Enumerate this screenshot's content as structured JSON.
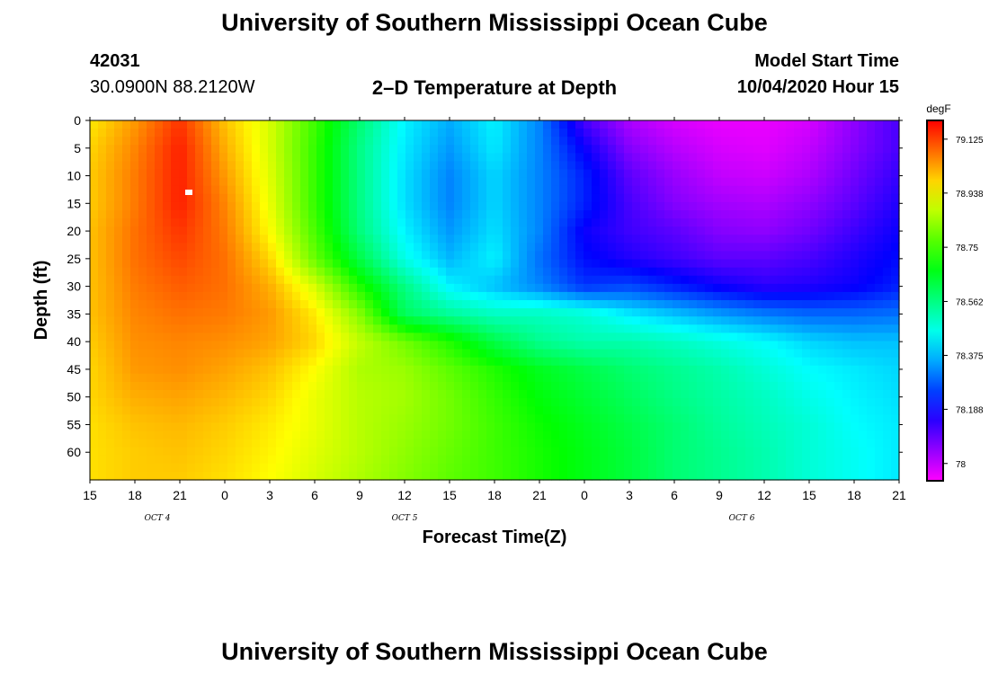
{
  "header": {
    "title": "University of Southern Mississippi Ocean Cube",
    "station_id": "42031",
    "location": "30.0900N 88.2120W",
    "plot_title": "2–D Temperature at Depth",
    "model_start_label": "Model Start Time",
    "model_start_value": "10/04/2020 Hour 15"
  },
  "footer": {
    "title": "University of Southern Mississippi Ocean Cube"
  },
  "chart_data": {
    "type": "heatmap",
    "title": "2–D Temperature at Depth",
    "xlabel": "Forecast Time(Z)",
    "ylabel": "Depth (ft)",
    "x_tick_labels": [
      "15",
      "18",
      "21",
      "0",
      "3",
      "6",
      "9",
      "12",
      "15",
      "18",
      "21",
      "0",
      "3",
      "6",
      "9",
      "12",
      "15",
      "18",
      "21"
    ],
    "date_labels": [
      {
        "text": "OCT 4",
        "at_tick": 1.5
      },
      {
        "text": "OCT 5",
        "at_tick": 7
      },
      {
        "text": "OCT 6",
        "at_tick": 14.5
      }
    ],
    "xlim_hours": [
      0,
      54
    ],
    "ylim": [
      0,
      65
    ],
    "y_ticks": [
      0,
      5,
      10,
      15,
      20,
      25,
      30,
      35,
      40,
      45,
      50,
      55,
      60
    ],
    "y_inverted": true,
    "colorbar": {
      "unit": "degF",
      "ticks": [
        79.125,
        78.938,
        78.75,
        78.562,
        78.375,
        78.188,
        78.0
      ],
      "range": [
        77.94,
        79.19
      ]
    },
    "depth_levels": [
      0,
      5,
      10,
      15,
      20,
      25,
      30,
      35,
      40,
      45,
      50,
      55,
      60,
      65
    ],
    "time_hours": [
      0,
      3,
      6,
      9,
      12,
      15,
      18,
      21,
      24,
      27,
      30,
      33,
      36,
      39,
      42,
      45,
      48,
      51,
      54
    ],
    "temperature_grid": [
      [
        78.96,
        79.04,
        79.14,
        79.0,
        78.9,
        78.75,
        78.58,
        78.43,
        78.36,
        78.43,
        78.32,
        78.12,
        78.02,
        77.98,
        77.96,
        77.96,
        77.98,
        78.05,
        78.12
      ],
      [
        78.98,
        79.06,
        79.16,
        79.02,
        78.9,
        78.74,
        78.56,
        78.42,
        78.34,
        78.42,
        78.32,
        78.18,
        78.06,
        78.01,
        77.98,
        77.97,
        78.0,
        78.06,
        78.12
      ],
      [
        78.99,
        79.07,
        79.16,
        79.04,
        78.91,
        78.74,
        78.56,
        78.41,
        78.32,
        78.4,
        78.32,
        78.22,
        78.1,
        78.04,
        78.0,
        77.99,
        78.02,
        78.08,
        78.14
      ],
      [
        78.99,
        79.07,
        79.16,
        79.06,
        78.92,
        78.74,
        78.56,
        78.41,
        78.32,
        78.4,
        78.32,
        78.22,
        78.12,
        78.06,
        78.03,
        78.02,
        78.05,
        78.1,
        78.16
      ],
      [
        79.0,
        79.08,
        79.14,
        79.07,
        78.94,
        78.76,
        78.57,
        78.43,
        78.34,
        78.41,
        78.32,
        78.18,
        78.13,
        78.1,
        78.06,
        78.05,
        78.08,
        78.13,
        78.18
      ],
      [
        79.0,
        79.08,
        79.12,
        79.08,
        78.98,
        78.79,
        78.62,
        78.46,
        78.37,
        78.43,
        78.3,
        78.2,
        78.16,
        78.13,
        78.1,
        78.1,
        78.12,
        78.16,
        78.2
      ],
      [
        79.0,
        79.07,
        79.1,
        79.08,
        79.02,
        78.9,
        78.72,
        78.56,
        78.43,
        78.38,
        78.32,
        78.24,
        78.26,
        78.22,
        78.18,
        78.15,
        78.16,
        78.18,
        78.22
      ],
      [
        79.0,
        79.06,
        79.08,
        79.07,
        79.04,
        78.96,
        78.82,
        78.6,
        78.54,
        78.5,
        78.5,
        78.48,
        78.42,
        78.38,
        78.34,
        78.31,
        78.29,
        78.29,
        78.3
      ],
      [
        78.99,
        79.05,
        79.06,
        79.05,
        79.03,
        78.98,
        78.88,
        78.8,
        78.72,
        78.62,
        78.55,
        78.52,
        78.52,
        78.5,
        78.47,
        78.44,
        78.4,
        78.38,
        78.38
      ],
      [
        78.98,
        79.04,
        79.05,
        79.03,
        79.0,
        78.94,
        78.86,
        78.84,
        78.78,
        78.72,
        78.66,
        78.62,
        78.58,
        78.55,
        78.52,
        78.48,
        78.44,
        78.42,
        78.4
      ],
      [
        78.98,
        79.02,
        79.03,
        79.01,
        78.98,
        78.92,
        78.87,
        78.85,
        78.8,
        78.74,
        78.68,
        78.64,
        78.6,
        78.56,
        78.53,
        78.5,
        78.46,
        78.43,
        78.41
      ],
      [
        78.97,
        79.0,
        79.01,
        78.99,
        78.96,
        78.92,
        78.87,
        78.84,
        78.8,
        78.75,
        78.7,
        78.66,
        78.62,
        78.58,
        78.54,
        78.51,
        78.48,
        78.44,
        78.42
      ],
      [
        78.97,
        78.99,
        79.0,
        78.98,
        78.95,
        78.91,
        78.87,
        78.83,
        78.79,
        78.75,
        78.71,
        78.67,
        78.63,
        78.58,
        78.55,
        78.52,
        78.48,
        78.45,
        78.42
      ],
      [
        78.97,
        78.99,
        78.99,
        78.97,
        78.94,
        78.9,
        78.86,
        78.82,
        78.78,
        78.75,
        78.71,
        78.67,
        78.63,
        78.58,
        78.55,
        78.52,
        78.48,
        78.45,
        78.42
      ]
    ],
    "marker": {
      "hour": 6.6,
      "depth": 13
    }
  }
}
